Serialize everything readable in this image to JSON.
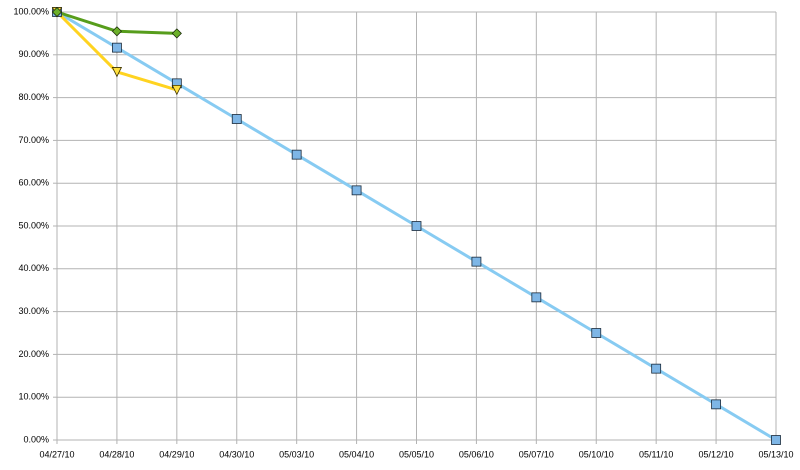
{
  "chart_data": {
    "type": "line",
    "categories": [
      "04/27/10",
      "04/28/10",
      "04/29/10",
      "04/30/10",
      "05/03/10",
      "05/04/10",
      "05/05/10",
      "05/06/10",
      "05/07/10",
      "05/10/10",
      "05/11/10",
      "05/12/10",
      "05/13/10"
    ],
    "series": [
      {
        "color": "#87cbf2",
        "marker": "square",
        "marker_color": "#7eb6e6",
        "values": [
          100,
          91.67,
          83.33,
          75,
          66.67,
          58.33,
          50,
          41.67,
          33.33,
          25,
          16.67,
          8.33,
          0
        ]
      },
      {
        "color": "#ffd320",
        "marker": "triangle",
        "marker_color": "#ffe040",
        "values": [
          100,
          86,
          81.8,
          null,
          null,
          null,
          null,
          null,
          null,
          null,
          null,
          null,
          null
        ]
      },
      {
        "color": "#579d1c",
        "marker": "diamond",
        "marker_color": "#6cb02a",
        "values": [
          100,
          95.5,
          95,
          null,
          null,
          null,
          null,
          null,
          null,
          null,
          null,
          null,
          null
        ]
      }
    ],
    "ylim": [
      0,
      100
    ],
    "yticks": [
      {
        "value": 0,
        "label": "0.00%"
      },
      {
        "value": 10,
        "label": "10.00%"
      },
      {
        "value": 20,
        "label": "20.00%"
      },
      {
        "value": 30,
        "label": "30.00%"
      },
      {
        "value": 40,
        "label": "40.00%"
      },
      {
        "value": 50,
        "label": "50.00%"
      },
      {
        "value": 60,
        "label": "60.00%"
      },
      {
        "value": 70,
        "label": "70.00%"
      },
      {
        "value": 80,
        "label": "80.00%"
      },
      {
        "value": 90,
        "label": "90.00%"
      },
      {
        "value": 100,
        "label": "100.00%"
      }
    ],
    "grid": true
  }
}
